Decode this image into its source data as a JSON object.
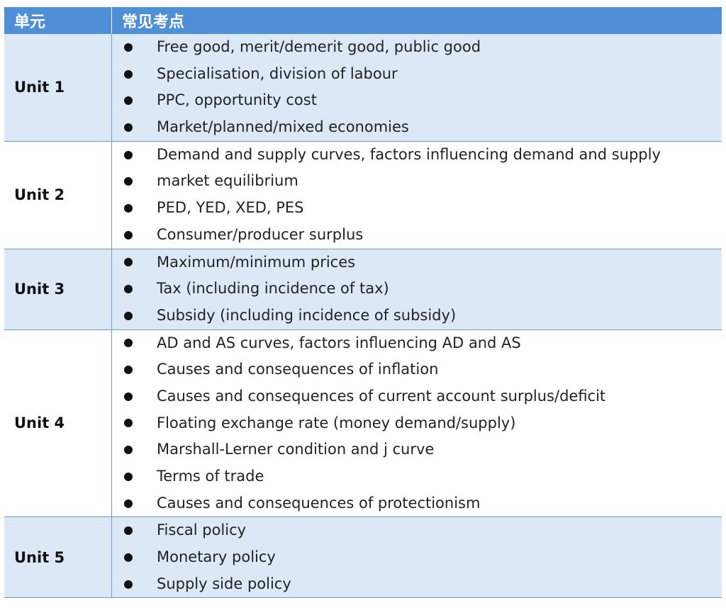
{
  "header": {
    "col1": "单元",
    "col2": "常见考点"
  },
  "rows": [
    {
      "unit": "Unit 1",
      "points": [
        "Free good, merit/demerit good, public good",
        "Specialisation, division of labour",
        "PPC, opportunity cost",
        "Market/planned/mixed economies"
      ]
    },
    {
      "unit": "Unit 2",
      "points": [
        "Demand and supply curves, factors influencing demand and supply",
        "market equilibrium",
        "PED, YED, XED, PES",
        "Consumer/producer surplus"
      ]
    },
    {
      "unit": "Unit 3",
      "points": [
        "Maximum/minimum prices",
        "Tax (including incidence of tax)",
        "Subsidy (including incidence of subsidy)"
      ]
    },
    {
      "unit": "Unit 4",
      "points": [
        "AD and AS curves, factors influencing AD and AS",
        "Causes and consequences of inflation",
        "Causes and consequences of current account surplus/deficit",
        "Floating exchange rate (money demand/supply)",
        "Marshall-Lerner condition and j curve",
        "Terms of trade",
        "Causes and consequences of protectionism"
      ]
    },
    {
      "unit": "Unit 5",
      "points": [
        "Fiscal policy",
        "Monetary policy",
        "Supply side policy"
      ]
    }
  ],
  "colors": {
    "header_bg": "#4f8fd6",
    "shaded_row": "#dde8f6",
    "border": "#6b9bd3"
  }
}
